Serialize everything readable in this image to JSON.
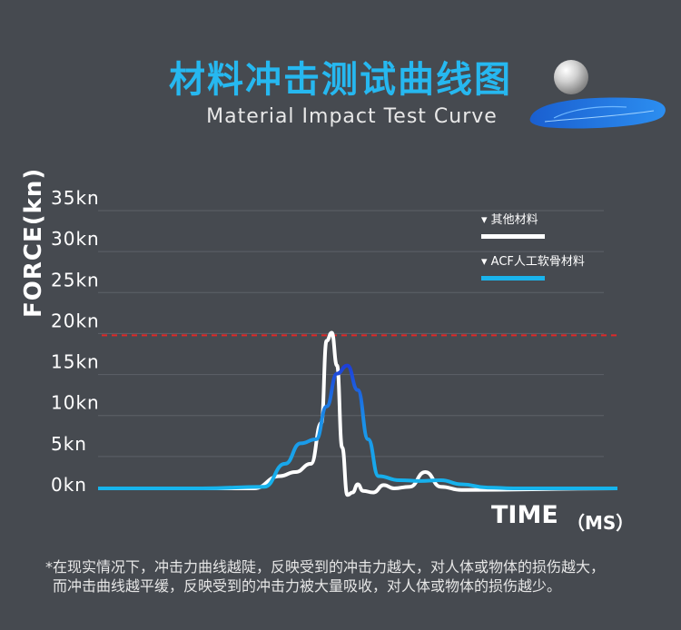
{
  "header": {
    "title": "材料冲击测试曲线图",
    "subtitle": "Material Impact Test Curve"
  },
  "chart_data": {
    "type": "line",
    "ylabel": "FORCE(kn)",
    "xlabel": "TIME",
    "xunit": "（MS）",
    "yticks": [
      "35kn",
      "30kn",
      "25kn",
      "20kn",
      "15kn",
      "10kn",
      "5kn",
      "0kn"
    ],
    "ylim": [
      0,
      35
    ],
    "reference_line": {
      "value": 20,
      "style": "dashed",
      "color": "#e02828"
    },
    "grid": true,
    "legend_position": "top-right",
    "series": [
      {
        "name": "其他材料",
        "color": "#ffffff",
        "x": [
          0,
          20,
          30,
          35,
          38,
          41,
          43,
          44,
          45,
          46,
          47,
          48,
          49,
          50,
          51,
          53,
          55,
          57,
          60,
          63,
          66,
          70,
          100
        ],
        "y": [
          0,
          0,
          0,
          1.5,
          2,
          3,
          8,
          18,
          19,
          15,
          5,
          -0.8,
          -0.5,
          0.5,
          -0.3,
          -0.5,
          0.4,
          0,
          0.2,
          2,
          0.2,
          -0.2,
          0
        ]
      },
      {
        "name": "ACF人工软骨材料",
        "color": "#1ab4ec",
        "x": [
          0,
          20,
          32,
          36,
          39,
          42,
          44,
          46,
          48,
          50,
          52,
          54,
          58,
          62,
          66,
          70,
          75,
          80,
          100
        ],
        "y": [
          0,
          0,
          0.2,
          3,
          5.5,
          6,
          10,
          14,
          15,
          12,
          6,
          1.5,
          1,
          0.9,
          1,
          0.5,
          0.1,
          0,
          0
        ]
      }
    ]
  },
  "footnote": {
    "line1": "*在现实情况下，冲击力曲线越陡，反映受到的冲击力越大，对人体或物体的损伤越大，",
    "line2": "而冲击曲线越平缓，反映受到的冲击力被大量吸收，对人体或物体的损伤越少。"
  }
}
